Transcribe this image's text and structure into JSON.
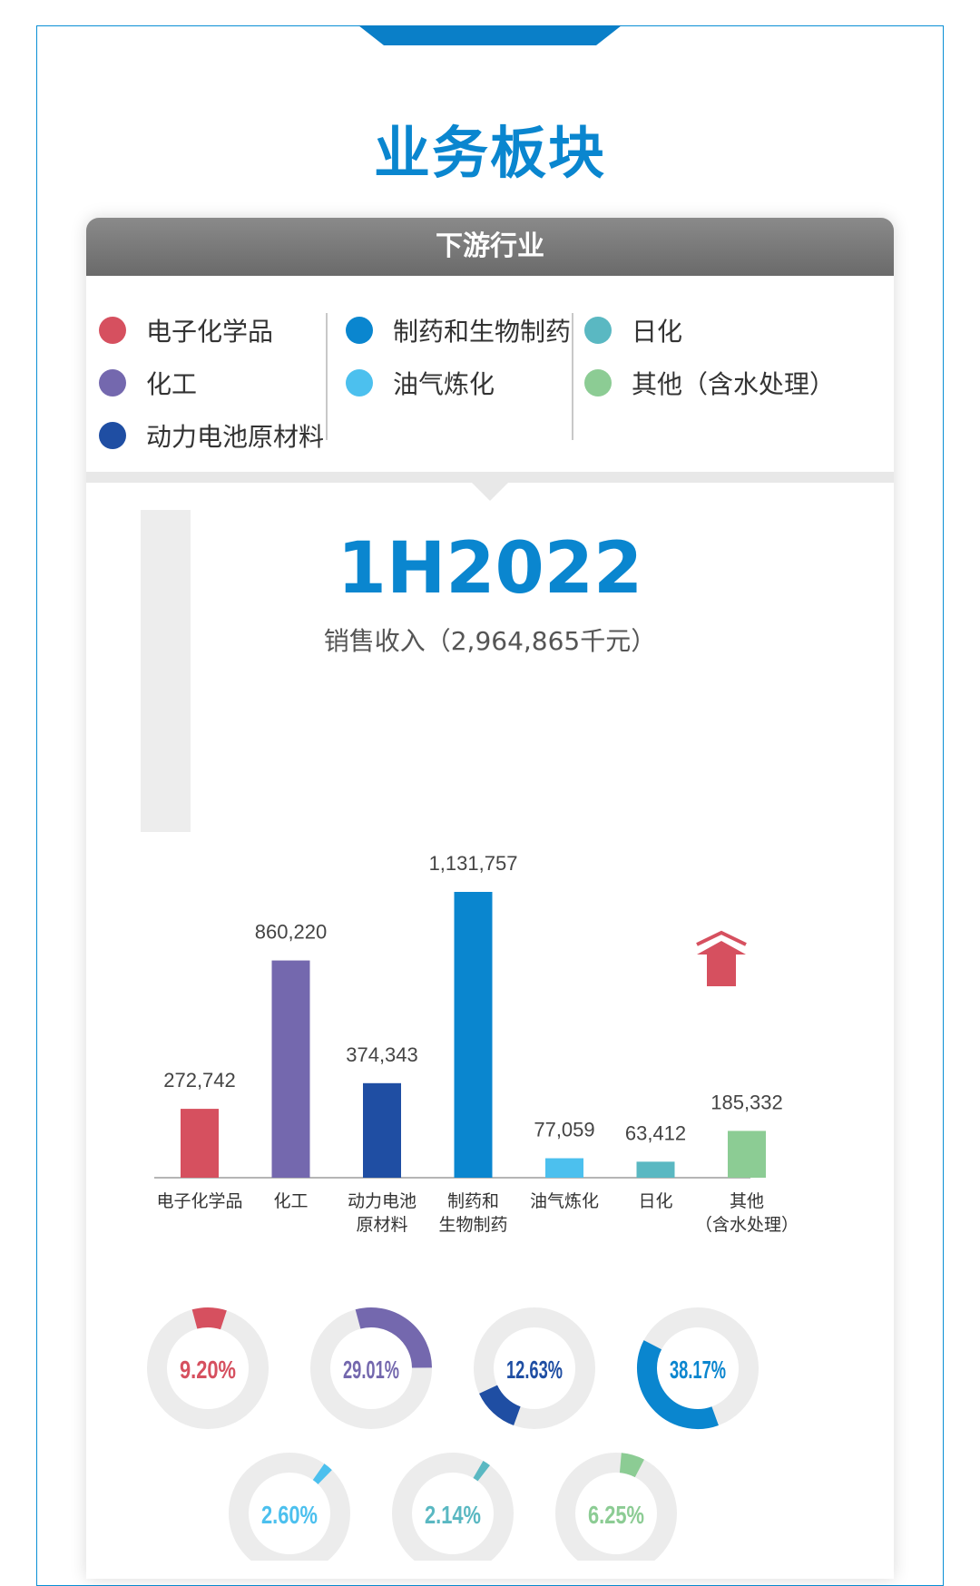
{
  "title": "业务板块",
  "card_title": "下游行业",
  "legend": [
    {
      "label": "电子化学品",
      "color": "#d6505f"
    },
    {
      "label": "化工",
      "color": "#7468ae"
    },
    {
      "label": "动力电池原材料",
      "color": "#1f4ea3"
    },
    {
      "label": "制药和生物制药",
      "color": "#0a86cf"
    },
    {
      "label": "油气炼化",
      "color": "#4cc0ee"
    },
    {
      "label": "日化",
      "color": "#5ab8c2"
    },
    {
      "label": "其他（含水处理）",
      "color": "#8ccc94"
    }
  ],
  "period": "1H2022",
  "revenue_label": "销售收入（2,964,865千元）",
  "chart_data": {
    "type": "bar",
    "categories": [
      "电子化学品",
      "化工",
      "动力电池原材料",
      "制药和生物制药",
      "油气炼化",
      "日化",
      "其他（含水处理）"
    ],
    "category_lines": [
      [
        "电子化学品"
      ],
      [
        "化工"
      ],
      [
        "动力电池",
        "原材料"
      ],
      [
        "制药和",
        "生物制药"
      ],
      [
        "油气炼化"
      ],
      [
        "日化"
      ],
      [
        "其他",
        "（含水处理）"
      ]
    ],
    "values": [
      272742,
      860220,
      374343,
      1131757,
      77059,
      63412,
      185332
    ],
    "value_labels": [
      "272,742",
      "860,220",
      "374,343",
      "1,131,757",
      "77,059",
      "63,412",
      "185,332"
    ],
    "colors": [
      "#d6505f",
      "#7468ae",
      "#1f4ea3",
      "#0a86cf",
      "#4cc0ee",
      "#5ab8c2",
      "#8ccc94"
    ],
    "shares": [
      9.2,
      29.01,
      12.63,
      38.17,
      2.6,
      2.14,
      6.25
    ],
    "share_labels": [
      "9.20%",
      "29.01%",
      "12.63%",
      "38.17%",
      "2.60%",
      "2.14%",
      "6.25%"
    ],
    "donut_start_angles_deg": [
      105,
      105,
      250,
      290,
      55,
      60,
      85
    ]
  },
  "colors": {
    "accent": "#0a86cf",
    "track": "#ececec",
    "arrow": "#d6505f"
  }
}
